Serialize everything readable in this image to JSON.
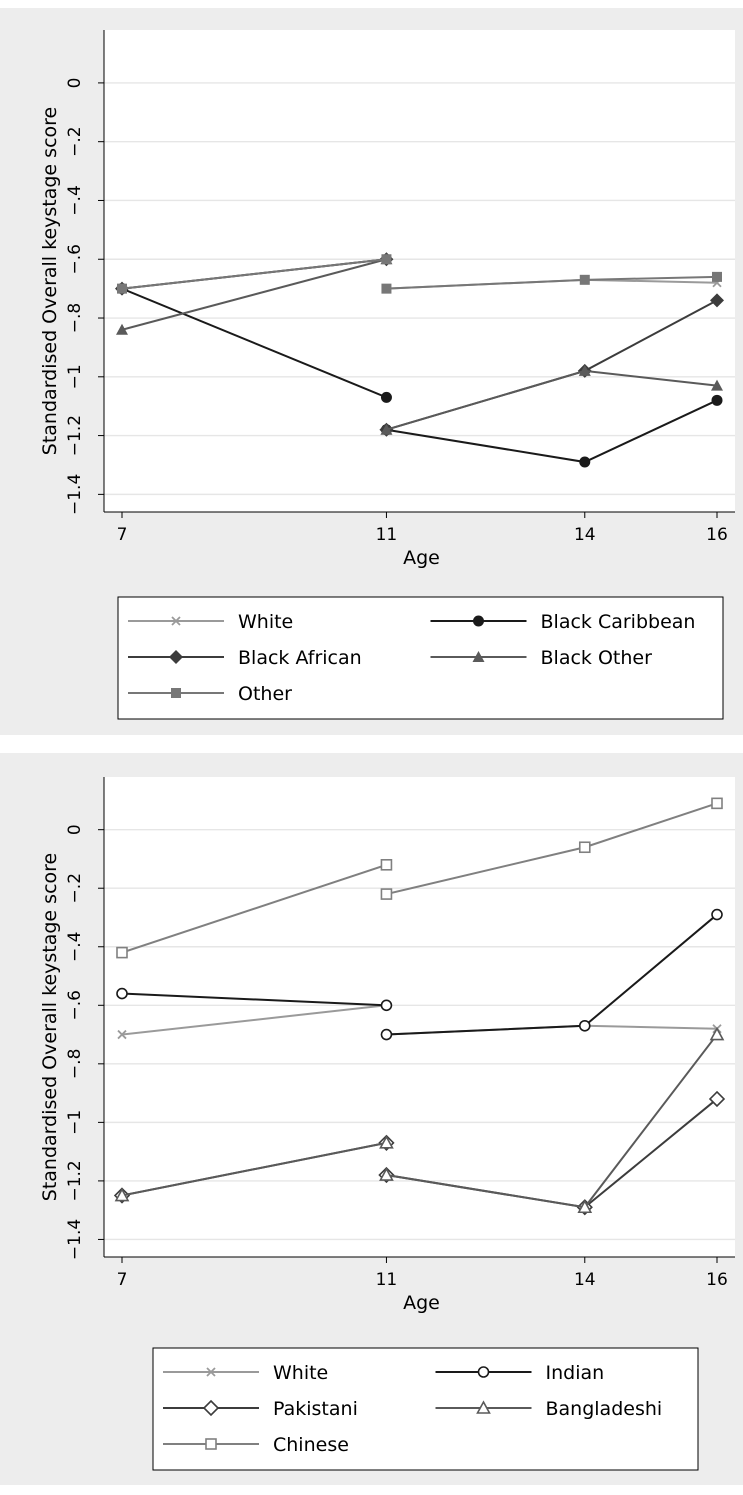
{
  "chart_data": [
    {
      "type": "line",
      "ylabel": "Standardised Overall keystage score",
      "xlabel": "Age",
      "x_ticks": [
        7,
        11,
        14,
        16
      ],
      "y_ticks": [
        0,
        -0.2,
        -0.4,
        -0.6,
        -0.8,
        -1,
        -1.2,
        -1.4
      ],
      "y_tick_labels": [
        "0",
        "−.2",
        "−.4",
        "−.6",
        "−.8",
        "−1",
        "−1.2",
        "−1.4"
      ],
      "xlim": [
        7,
        16
      ],
      "ylim": [
        -1.46,
        0.18
      ],
      "grid": true,
      "legend": "below",
      "series": [
        {
          "name": "White",
          "color": "#9a9a9a",
          "marker": "x",
          "segments": [
            [
              {
                "x": 7,
                "y": -0.7
              },
              {
                "x": 11,
                "y": -0.6
              }
            ],
            [
              {
                "x": 11,
                "y": -0.7
              },
              {
                "x": 14,
                "y": -0.67
              },
              {
                "x": 16,
                "y": -0.68
              }
            ]
          ]
        },
        {
          "name": "Black Caribbean",
          "color": "#1a1a1a",
          "marker": "circle-filled",
          "segments": [
            [
              {
                "x": 7,
                "y": -0.7
              },
              {
                "x": 11,
                "y": -1.07
              }
            ],
            [
              {
                "x": 11,
                "y": -1.18
              },
              {
                "x": 14,
                "y": -1.29
              },
              {
                "x": 16,
                "y": -1.08
              }
            ]
          ]
        },
        {
          "name": "Black African",
          "color": "#3c3c3c",
          "marker": "diamond-filled",
          "segments": [
            [
              {
                "x": 7,
                "y": -0.7
              },
              {
                "x": 11,
                "y": -0.6
              }
            ],
            [
              {
                "x": 11,
                "y": -1.18
              },
              {
                "x": 14,
                "y": -0.98
              },
              {
                "x": 16,
                "y": -0.74
              }
            ]
          ]
        },
        {
          "name": "Black Other",
          "color": "#5a5a5a",
          "marker": "triangle-filled",
          "segments": [
            [
              {
                "x": 7,
                "y": -0.84
              },
              {
                "x": 11,
                "y": -0.6
              }
            ],
            [
              {
                "x": 11,
                "y": -1.18
              },
              {
                "x": 14,
                "y": -0.98
              },
              {
                "x": 16,
                "y": -1.03
              }
            ]
          ]
        },
        {
          "name": "Other",
          "color": "#777777",
          "marker": "square-filled",
          "segments": [
            [
              {
                "x": 7,
                "y": -0.7
              },
              {
                "x": 11,
                "y": -0.6
              }
            ],
            [
              {
                "x": 11,
                "y": -0.7
              },
              {
                "x": 14,
                "y": -0.67
              },
              {
                "x": 16,
                "y": -0.66
              }
            ]
          ]
        }
      ]
    },
    {
      "type": "line",
      "ylabel": "Standardised Overall keystage score",
      "xlabel": "Age",
      "x_ticks": [
        7,
        11,
        14,
        16
      ],
      "y_ticks": [
        0,
        -0.2,
        -0.4,
        -0.6,
        -0.8,
        -1,
        -1.2,
        -1.4
      ],
      "y_tick_labels": [
        "0",
        "−.2",
        "−.4",
        "−.6",
        "−.8",
        "−1",
        "−1.2",
        "−1.4"
      ],
      "xlim": [
        7,
        16
      ],
      "ylim": [
        -1.46,
        0.18
      ],
      "grid": true,
      "legend": "below",
      "series": [
        {
          "name": "White",
          "color": "#9a9a9a",
          "marker": "x",
          "segments": [
            [
              {
                "x": 7,
                "y": -0.7
              },
              {
                "x": 11,
                "y": -0.6
              }
            ],
            [
              {
                "x": 11,
                "y": -0.7
              },
              {
                "x": 14,
                "y": -0.67
              },
              {
                "x": 16,
                "y": -0.68
              }
            ]
          ]
        },
        {
          "name": "Indian",
          "color": "#1a1a1a",
          "marker": "circle-hollow",
          "segments": [
            [
              {
                "x": 7,
                "y": -0.56
              },
              {
                "x": 11,
                "y": -0.6
              }
            ],
            [
              {
                "x": 11,
                "y": -0.7
              },
              {
                "x": 14,
                "y": -0.67
              },
              {
                "x": 16,
                "y": -0.29
              }
            ]
          ]
        },
        {
          "name": "Pakistani",
          "color": "#3c3c3c",
          "marker": "diamond-hollow",
          "segments": [
            [
              {
                "x": 7,
                "y": -1.25
              },
              {
                "x": 11,
                "y": -1.07
              }
            ],
            [
              {
                "x": 11,
                "y": -1.18
              },
              {
                "x": 14,
                "y": -1.29
              },
              {
                "x": 16,
                "y": -0.92
              }
            ]
          ]
        },
        {
          "name": "Bangladeshi",
          "color": "#5a5a5a",
          "marker": "triangle-hollow",
          "segments": [
            [
              {
                "x": 7,
                "y": -1.25
              },
              {
                "x": 11,
                "y": -1.07
              }
            ],
            [
              {
                "x": 11,
                "y": -1.18
              },
              {
                "x": 14,
                "y": -1.29
              },
              {
                "x": 16,
                "y": -0.7
              }
            ]
          ]
        },
        {
          "name": "Chinese",
          "color": "#808080",
          "marker": "square-hollow",
          "segments": [
            [
              {
                "x": 7,
                "y": -0.42
              },
              {
                "x": 11,
                "y": -0.12
              }
            ],
            [
              {
                "x": 11,
                "y": -0.22
              },
              {
                "x": 14,
                "y": -0.06
              },
              {
                "x": 16,
                "y": 0.09
              }
            ]
          ]
        }
      ]
    }
  ]
}
